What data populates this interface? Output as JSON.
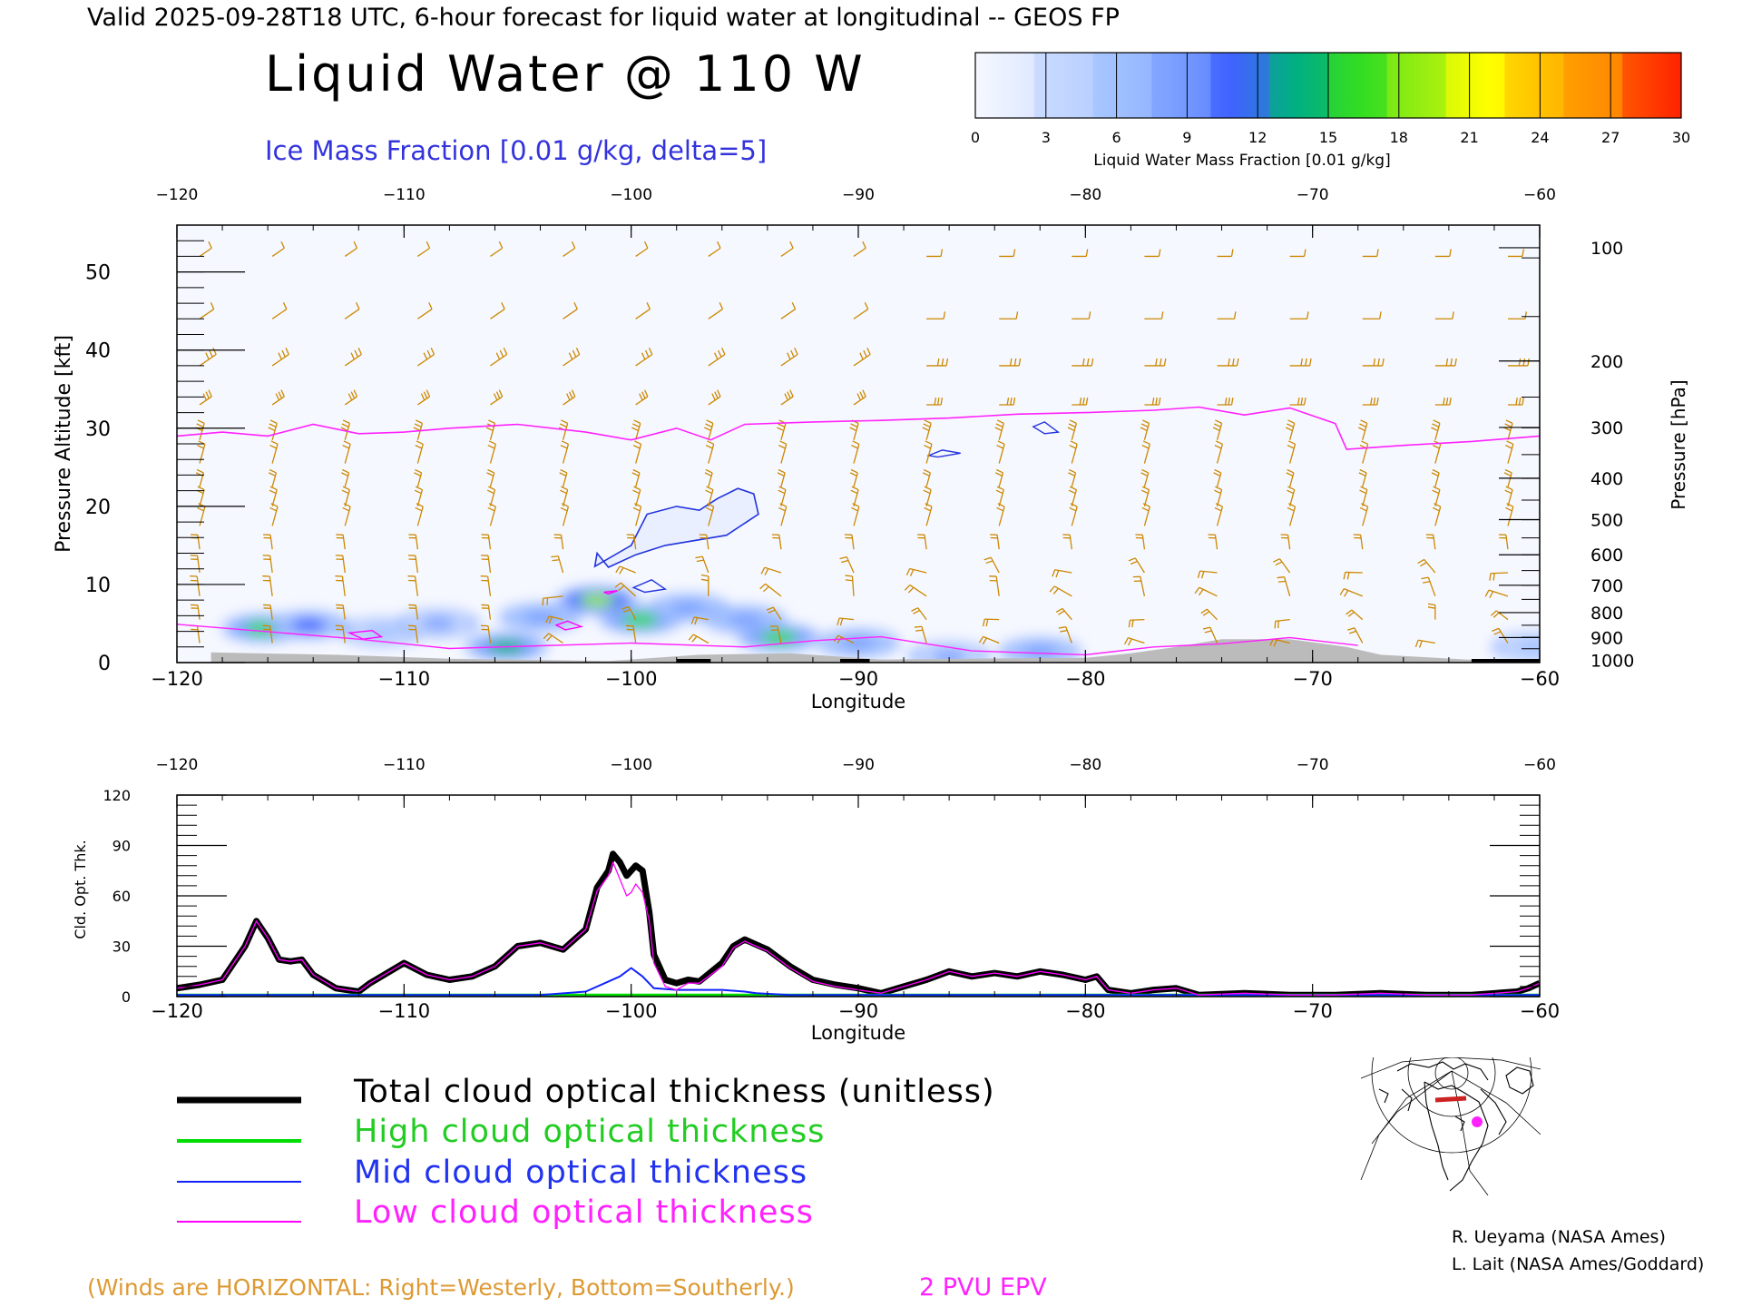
{
  "header": {
    "valid_line": "Valid 2025-09-28T18 UTC, 6-hour forecast for liquid water at longitudinal -- GEOS FP",
    "main_title": "Liquid Water @ 110 W",
    "subtitle": "Ice Mass Fraction [0.01 g/kg, delta=5]"
  },
  "colorbar": {
    "label": "Liquid Water Mass Fraction [0.01 g/kg]",
    "ticks": [
      "0",
      "3",
      "6",
      "9",
      "12",
      "15",
      "18",
      "21",
      "24",
      "27",
      "30"
    ],
    "colors": [
      "#f6f8ff",
      "#c9daff",
      "#a5c4ff",
      "#7da2ff",
      "#3f63ff",
      "#00b080",
      "#33dd22",
      "#99ee11",
      "#ffff00",
      "#ffbb00",
      "#ff8800",
      "#ff2200"
    ]
  },
  "chart_data": [
    {
      "type": "heatmap",
      "xlabel": "Longitude",
      "ylabel": "Pressure Altitude [kft]",
      "ylabel_right": "Pressure [hPa]",
      "xlim": [
        -120,
        -60
      ],
      "ylim": [
        0,
        56
      ],
      "x_ticks": [
        "−120",
        "−110",
        "−100",
        "−90",
        "−80",
        "−70",
        "−60"
      ],
      "y_ticks": [
        "0",
        "10",
        "20",
        "30",
        "40",
        "50"
      ],
      "pressure_ticks": [
        "100",
        "200",
        "300",
        "400",
        "500",
        "600",
        "700",
        "800",
        "900",
        "1000"
      ],
      "pressure_tick_alt_kft": [
        53.1,
        38.6,
        30.1,
        23.6,
        18.3,
        13.8,
        9.9,
        6.4,
        3.2,
        0.3
      ],
      "colors": {
        "epv": "#ff22ff",
        "ice_contour": "#2233dd",
        "wind_barbs": "#cc8800",
        "terrain": "#bbbbbb"
      },
      "epv_2pvu": {
        "lon": [
          -120,
          -118,
          -116,
          -114,
          -112,
          -110,
          -108,
          -105,
          -102,
          -100,
          -98,
          -96.5,
          -95,
          -92,
          -89,
          -86,
          -83,
          -80,
          -77,
          -75,
          -73,
          -71,
          -69,
          -68.5,
          -66,
          -63,
          -60
        ],
        "alt_kft": [
          29,
          29.5,
          29,
          30.5,
          29.3,
          29.5,
          30,
          30.5,
          29.5,
          28.5,
          30,
          28.5,
          30.5,
          30.8,
          31,
          31.3,
          31.8,
          32,
          32.3,
          32.7,
          31.7,
          32.6,
          30.6,
          27.3,
          27.8,
          28.3,
          29
        ]
      },
      "terrain": {
        "lon": [
          -118.5,
          -113,
          -108,
          -101,
          -97,
          -93,
          -89,
          -85,
          -80,
          -78,
          -76,
          -74,
          -71,
          -68.5,
          -67,
          -62,
          -60
        ],
        "alt_kft": [
          1.3,
          1.0,
          0.5,
          0.2,
          1.0,
          1.2,
          0.4,
          0.5,
          0.6,
          1.2,
          2.0,
          3.0,
          3.0,
          2.0,
          1.0,
          0.2,
          0.2
        ]
      },
      "liquid_water_blobs": [
        {
          "lon": -116.2,
          "alt_kft": 4.4,
          "value": 16
        },
        {
          "lon": -114.2,
          "alt_kft": 4.8,
          "value": 11
        },
        {
          "lon": -111,
          "alt_kft": 3.9,
          "value": 6
        },
        {
          "lon": -108.5,
          "alt_kft": 5.0,
          "value": 7
        },
        {
          "lon": -105.5,
          "alt_kft": 2.0,
          "value": 14
        },
        {
          "lon": -104,
          "alt_kft": 5.8,
          "value": 9
        },
        {
          "lon": -101.5,
          "alt_kft": 8.0,
          "value": 19
        },
        {
          "lon": -99.6,
          "alt_kft": 5.5,
          "value": 15
        },
        {
          "lon": -97.5,
          "alt_kft": 7.0,
          "value": 8
        },
        {
          "lon": -95,
          "alt_kft": 5.5,
          "value": 9
        },
        {
          "lon": -93.5,
          "alt_kft": 3.2,
          "value": 16
        },
        {
          "lon": -90,
          "alt_kft": 2.5,
          "value": 8
        },
        {
          "lon": -86,
          "alt_kft": 0.8,
          "value": 7
        },
        {
          "lon": -82,
          "alt_kft": 1.4,
          "value": 9
        },
        {
          "lon": -60.3,
          "alt_kft": 2.0,
          "value": 6
        }
      ]
    },
    {
      "type": "line",
      "xlabel": "Longitude",
      "ylabel": "Cld. Opt. Thk.",
      "xlim": [
        -120,
        -60
      ],
      "ylim": [
        0,
        120
      ],
      "x_ticks": [
        "−120",
        "−110",
        "−100",
        "−90",
        "−80",
        "−70",
        "−60"
      ],
      "y_ticks": [
        "0",
        "30",
        "60",
        "90",
        "120"
      ],
      "series": [
        {
          "name": "Total cloud optical thickness (unitless)",
          "color": "#000000",
          "x": [
            -120,
            -119,
            -118,
            -117,
            -116.5,
            -116,
            -115.5,
            -115,
            -114.5,
            -114,
            -113,
            -112,
            -111.5,
            -110,
            -109,
            -108,
            -107,
            -106,
            -105,
            -104,
            -103,
            -102,
            -101.5,
            -101,
            -100.8,
            -100.5,
            -100.2,
            -100,
            -99.8,
            -99.5,
            -99.2,
            -99,
            -98.5,
            -98,
            -97.5,
            -97,
            -96,
            -95.5,
            -95,
            -94.5,
            -94,
            -93,
            -92,
            -91,
            -90,
            -89,
            -88,
            -87,
            -86,
            -85,
            -84,
            -83,
            -82,
            -81,
            -80,
            -79.5,
            -79,
            -78,
            -77,
            -76,
            -75,
            -73,
            -71,
            -69,
            -67,
            -65,
            -63,
            -61,
            -60.5,
            -60
          ],
          "y": [
            5,
            7,
            10,
            30,
            45,
            35,
            22,
            21,
            22,
            13,
            5,
            3,
            8,
            20,
            13,
            10,
            12,
            18,
            30,
            32,
            28,
            40,
            65,
            75,
            85,
            80,
            72,
            75,
            78,
            75,
            50,
            25,
            10,
            8,
            10,
            9,
            20,
            30,
            34,
            31,
            28,
            18,
            10,
            7,
            5,
            2,
            6,
            10,
            15,
            12,
            14,
            12,
            15,
            13,
            10,
            12,
            4,
            2,
            4,
            5,
            1,
            2,
            1,
            1,
            2,
            1,
            1,
            3,
            5,
            8
          ]
        },
        {
          "name": "High cloud optical thickness",
          "color": "#00dd00",
          "x": [
            -120,
            -60
          ],
          "y": [
            1,
            1
          ]
        },
        {
          "name": "Mid cloud optical thickness",
          "color": "#1122ff",
          "x": [
            -120,
            -104,
            -102,
            -100.5,
            -100,
            -99.5,
            -99,
            -98,
            -96,
            -95,
            -94.5,
            -93,
            -91,
            -60
          ],
          "y": [
            1,
            1,
            3,
            12,
            17,
            12,
            5,
            4,
            4,
            3,
            2,
            1,
            1,
            1
          ]
        },
        {
          "name": "Low cloud optical thickness",
          "color": "#ff00ff",
          "x": [
            -120,
            -119,
            -118,
            -117,
            -116.5,
            -116,
            -115.5,
            -115,
            -114.5,
            -114,
            -113,
            -112,
            -111.5,
            -110,
            -109,
            -108,
            -107,
            -106,
            -105,
            -104,
            -103,
            -102,
            -101.5,
            -101,
            -100.8,
            -100.5,
            -100.2,
            -100,
            -99.8,
            -99.5,
            -99.2,
            -99,
            -98.5,
            -98,
            -97.5,
            -97,
            -96,
            -95.5,
            -95,
            -94.5,
            -94,
            -93,
            -92,
            -91,
            -90,
            -89,
            -88,
            -87,
            -86,
            -85,
            -84,
            -83,
            -82,
            -81,
            -80,
            -79.5,
            -79,
            -78,
            -77,
            -76,
            -75,
            -73,
            -71,
            -69,
            -67,
            -65,
            -63,
            -61,
            -60.5,
            -60
          ],
          "y": [
            5,
            7,
            10,
            30,
            45,
            35,
            22,
            21,
            22,
            13,
            5,
            3,
            8,
            20,
            13,
            10,
            12,
            18,
            30,
            32,
            28,
            40,
            63,
            72,
            80,
            70,
            60,
            62,
            67,
            62,
            45,
            20,
            6,
            4,
            8,
            8,
            18,
            29,
            33,
            30,
            27,
            17,
            9,
            6,
            4,
            2,
            6,
            10,
            15,
            12,
            14,
            12,
            15,
            13,
            10,
            12,
            4,
            2,
            4,
            5,
            1,
            2,
            1,
            1,
            2,
            1,
            1,
            3,
            5,
            8
          ]
        }
      ]
    }
  ],
  "legend": {
    "total": "Total cloud optical thickness (unitless)",
    "high": "High cloud optical thickness",
    "mid": "Mid cloud optical thickness",
    "low": "Low cloud optical thickness"
  },
  "footer": {
    "winds_note": "(Winds are HORIZONTAL: Right=Westerly, Bottom=Southerly.)",
    "epv_label": "2 PVU EPV",
    "credit1": "R. Ueyama (NASA Ames)",
    "credit2": "L. Lait (NASA Ames/Goddard)"
  }
}
